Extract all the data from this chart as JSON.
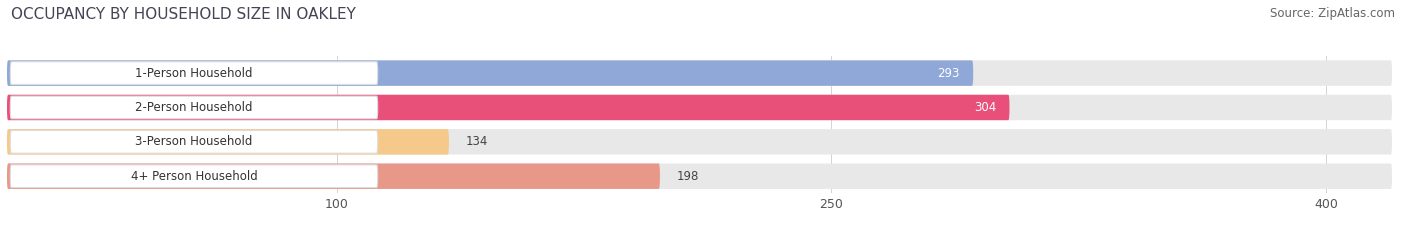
{
  "title": "OCCUPANCY BY HOUSEHOLD SIZE IN OAKLEY",
  "source": "Source: ZipAtlas.com",
  "categories": [
    "1-Person Household",
    "2-Person Household",
    "3-Person Household",
    "4+ Person Household"
  ],
  "values": [
    293,
    304,
    134,
    198
  ],
  "bar_colors": [
    "#8fa8d8",
    "#e8507a",
    "#f5c98a",
    "#e89888"
  ],
  "bg_color": "#f0f0f0",
  "row_bg_color": "#e8e8e8",
  "label_box_color": "#ffffff",
  "xlim_max": 420,
  "xticks": [
    100,
    250,
    400
  ],
  "figsize": [
    14.06,
    2.33
  ],
  "dpi": 100,
  "title_fontsize": 11,
  "source_fontsize": 8.5,
  "value_fontsize": 8.5,
  "category_fontsize": 8.5,
  "tick_fontsize": 9
}
